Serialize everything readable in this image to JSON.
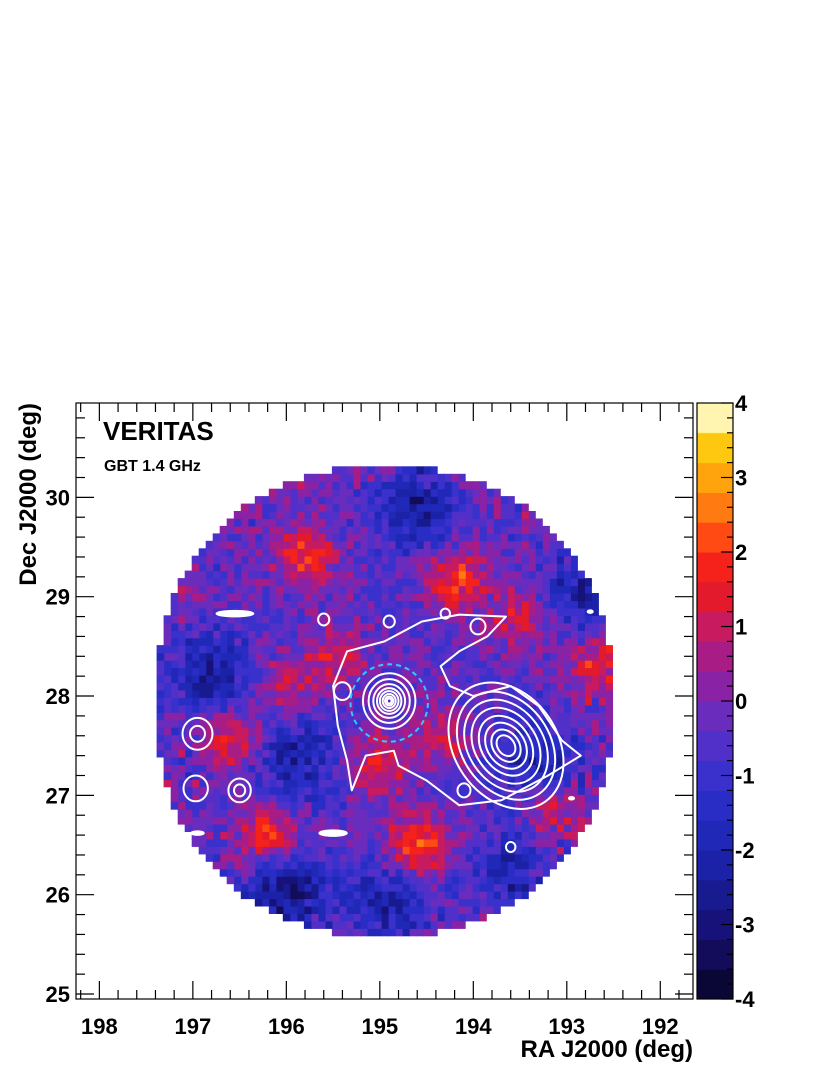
{
  "chart_data": {
    "type": "heatmap",
    "title": "VERITAS",
    "subtitle": "GBT 1.4 GHz",
    "xlabel": "RA J2000 (deg)",
    "ylabel": "Dec J2000 (deg)",
    "xlim": [
      198.25,
      191.65
    ],
    "ylim": [
      24.95,
      30.95
    ],
    "x_reversed": true,
    "x_ticks": [
      "198",
      "197",
      "196",
      "195",
      "194",
      "193",
      "192"
    ],
    "y_ticks": [
      "25",
      "26",
      "27",
      "28",
      "29",
      "30"
    ],
    "colorbar": {
      "zlim": [
        -4,
        4
      ],
      "tick_labels": [
        "4",
        "3",
        "2",
        "1",
        "0",
        "-1",
        "-2",
        "-3",
        "-4"
      ],
      "levels": 20,
      "colors": [
        "#0a0636",
        "#120c5a",
        "#16127a",
        "#181a90",
        "#1c22a8",
        "#2028b8",
        "#2a2cc6",
        "#3a30cc",
        "#5030c8",
        "#6a2cbc",
        "#8a22a6",
        "#a81c86",
        "#c81a5e",
        "#e21a2c",
        "#f4221a",
        "#ff4a14",
        "#ff7a10",
        "#ffa40c",
        "#ffc810",
        "#ffea28"
      ],
      "top_color": "#fff5b0"
    },
    "field": {
      "center": [
        194.95,
        27.95
      ],
      "radius_deg": 2.45,
      "mean": -0.4,
      "hotspots": [
        {
          "ra": 194.6,
          "dec": 26.5,
          "value": 2.6
        },
        {
          "ra": 196.2,
          "dec": 26.6,
          "value": 2.4
        },
        {
          "ra": 195.8,
          "dec": 29.4,
          "value": 2.2
        },
        {
          "ra": 194.2,
          "dec": 29.2,
          "value": 2.3
        },
        {
          "ra": 196.6,
          "dec": 27.6,
          "value": 1.9
        },
        {
          "ra": 195.0,
          "dec": 27.3,
          "value": 1.8
        },
        {
          "ra": 193.5,
          "dec": 28.8,
          "value": 1.7
        },
        {
          "ra": 193.2,
          "dec": 26.9,
          "value": 2.0
        },
        {
          "ra": 195.5,
          "dec": 28.4,
          "value": 1.5
        },
        {
          "ra": 192.7,
          "dec": 28.3,
          "value": 1.6
        },
        {
          "ra": 196.0,
          "dec": 28.1,
          "value": 1.4
        },
        {
          "ra": 194.3,
          "dec": 27.6,
          "value": 1.5
        }
      ],
      "coldspots": [
        {
          "ra": 196.0,
          "dec": 26.0,
          "value": -2.6
        },
        {
          "ra": 194.6,
          "dec": 29.9,
          "value": -2.2
        },
        {
          "ra": 196.8,
          "dec": 28.2,
          "value": -2.0
        },
        {
          "ra": 193.3,
          "dec": 27.3,
          "value": -2.0
        },
        {
          "ra": 194.9,
          "dec": 25.9,
          "value": -1.8
        },
        {
          "ra": 195.9,
          "dec": 27.4,
          "value": -1.8
        },
        {
          "ra": 192.8,
          "dec": 29.1,
          "value": -1.9
        },
        {
          "ra": 193.6,
          "dec": 26.2,
          "value": -1.6
        }
      ]
    },
    "contours": {
      "color": "#ffffff",
      "sources": [
        {
          "ra": 194.9,
          "dec": 27.95,
          "rings": [
            0.28,
            0.22,
            0.17,
            0.13,
            0.1,
            0.07,
            0.045,
            0.025
          ]
        },
        {
          "ra": 193.65,
          "dec": 27.5,
          "rings": [
            0.55,
            0.47,
            0.4,
            0.33,
            0.26,
            0.2,
            0.14,
            0.09
          ]
        },
        {
          "ra": 196.5,
          "dec": 27.05,
          "rings": [
            0.12,
            0.06
          ]
        },
        {
          "ra": 196.95,
          "dec": 27.62,
          "rings": [
            0.16,
            0.08
          ]
        },
        {
          "ra": 196.97,
          "dec": 27.07,
          "rings": [
            0.13
          ]
        },
        {
          "ra": 195.4,
          "dec": 28.05,
          "rings": [
            0.09
          ]
        },
        {
          "ra": 194.9,
          "dec": 28.75,
          "rings": [
            0.06
          ]
        },
        {
          "ra": 195.6,
          "dec": 28.77,
          "rings": [
            0.06
          ]
        },
        {
          "ra": 194.1,
          "dec": 27.05,
          "rings": [
            0.07
          ]
        },
        {
          "ra": 193.6,
          "dec": 26.48,
          "rings": [
            0.05
          ]
        },
        {
          "ra": 194.3,
          "dec": 28.83,
          "rings": [
            0.05
          ]
        },
        {
          "ra": 193.95,
          "dec": 28.7,
          "rings": [
            0.08
          ]
        }
      ],
      "outer_polygon": [
        [
          195.35,
          28.45
        ],
        [
          194.95,
          28.55
        ],
        [
          194.55,
          28.75
        ],
        [
          194.15,
          28.82
        ],
        [
          193.65,
          28.8
        ],
        [
          193.85,
          28.6
        ],
        [
          194.15,
          28.45
        ],
        [
          194.35,
          28.3
        ],
        [
          194.25,
          28.1
        ],
        [
          194.0,
          28.0
        ],
        [
          193.6,
          28.1
        ],
        [
          193.3,
          27.9
        ],
        [
          193.05,
          27.55
        ],
        [
          192.85,
          27.4
        ],
        [
          193.2,
          27.2
        ],
        [
          193.7,
          26.95
        ],
        [
          194.15,
          26.9
        ],
        [
          194.5,
          27.15
        ],
        [
          194.8,
          27.3
        ],
        [
          194.85,
          27.45
        ],
        [
          195.15,
          27.4
        ],
        [
          195.3,
          27.05
        ],
        [
          195.35,
          27.35
        ],
        [
          195.45,
          27.7
        ],
        [
          195.5,
          28.1
        ]
      ],
      "small_blobs": [
        {
          "ra": 196.55,
          "dec": 28.83,
          "rx": 0.2,
          "ry": 0.03
        },
        {
          "ra": 195.5,
          "dec": 26.62,
          "rx": 0.15,
          "ry": 0.03
        },
        {
          "ra": 196.95,
          "dec": 26.62,
          "rx": 0.07,
          "ry": 0.02
        },
        {
          "ra": 192.95,
          "dec": 26.97,
          "rx": 0.03,
          "ry": 0.015
        },
        {
          "ra": 192.75,
          "dec": 28.85,
          "rx": 0.03,
          "ry": 0.015
        }
      ]
    },
    "dashed_circle": {
      "ra": 194.9,
      "dec": 27.93,
      "radius_deg": 0.39,
      "color": "#33c8ff"
    }
  }
}
